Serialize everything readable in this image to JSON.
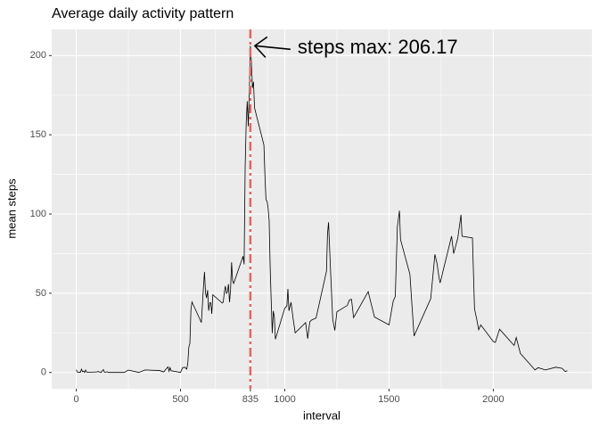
{
  "chart_data": {
    "type": "line",
    "title": "Average daily activity pattern",
    "xlabel": "interval",
    "ylabel": "mean steps",
    "annotation": "steps max: 206.17",
    "vline": 835,
    "vline_color": "#e06666",
    "color": "#000000",
    "grid": true,
    "xlim": [
      -117.75,
      2472.75
    ],
    "xticks": [
      0,
      500,
      835,
      1000,
      1500,
      2000
    ],
    "ylim": [
      -10.3,
      216.5
    ],
    "yticks": [
      0,
      50,
      100,
      150,
      200
    ],
    "x": [
      0,
      5,
      10,
      15,
      20,
      25,
      30,
      35,
      40,
      45,
      50,
      55,
      100,
      105,
      110,
      115,
      120,
      125,
      130,
      135,
      140,
      145,
      150,
      155,
      200,
      230,
      250,
      300,
      330,
      400,
      420,
      430,
      440,
      445,
      450,
      455,
      500,
      510,
      520,
      530,
      535,
      540,
      545,
      550,
      555,
      600,
      610,
      615,
      620,
      625,
      630,
      635,
      640,
      645,
      650,
      655,
      700,
      705,
      710,
      715,
      720,
      725,
      730,
      735,
      740,
      745,
      750,
      755,
      800,
      805,
      810,
      815,
      820,
      825,
      830,
      835,
      840,
      845,
      850,
      855,
      900,
      905,
      910,
      915,
      920,
      925,
      930,
      935,
      940,
      945,
      950,
      955,
      1000,
      1010,
      1015,
      1020,
      1030,
      1040,
      1050,
      1100,
      1110,
      1120,
      1130,
      1150,
      1200,
      1205,
      1210,
      1220,
      1230,
      1240,
      1250,
      1300,
      1310,
      1320,
      1330,
      1400,
      1430,
      1500,
      1520,
      1530,
      1540,
      1550,
      1555,
      1600,
      1620,
      1700,
      1720,
      1730,
      1740,
      1745,
      1800,
      1810,
      1830,
      1845,
      1850,
      1900,
      1910,
      1920,
      1930,
      1940,
      2000,
      2010,
      2030,
      2100,
      2110,
      2130,
      2200,
      2215,
      2235,
      2250,
      2300,
      2330,
      2345,
      2355
    ],
    "values": [
      1.7,
      0.3,
      0.1,
      0.2,
      0.1,
      2.1,
      0.5,
      0.9,
      0,
      1.5,
      0.3,
      0.1,
      0.3,
      0.7,
      0.2,
      0.3,
      0,
      1.1,
      1.8,
      0.2,
      0.2,
      0.4,
      0.3,
      0,
      0,
      0,
      1.5,
      0,
      1.6,
      1.2,
      0.3,
      2.1,
      3.5,
      0.8,
      3.1,
      1.1,
      0,
      3,
      3.3,
      2.1,
      6.1,
      16,
      18.3,
      39.5,
      44.5,
      31.5,
      53.8,
      63.5,
      50,
      47,
      52,
      39,
      44,
      44,
      37,
      49,
      43.8,
      44.4,
      50.5,
      54.5,
      49.9,
      50.9,
      55.7,
      44.3,
      52.3,
      69.5,
      57.8,
      56.2,
      73.4,
      68.2,
      129.4,
      157.5,
      171.2,
      155.4,
      177.3,
      206.17,
      195.9,
      179.6,
      183.4,
      167,
      143.5,
      124,
      109.1,
      108.1,
      103.7,
      95.9,
      66.2,
      45.2,
      24.8,
      38.8,
      35,
      21,
      40.6,
      42,
      52.7,
      38.9,
      44.3,
      34,
      25,
      31.4,
      21.3,
      32,
      33.2,
      34.3,
      63.9,
      87.6,
      94.8,
      63,
      33.5,
      26.5,
      38.3,
      42.3,
      45.8,
      46.2,
      34.6,
      51,
      35,
      30,
      45,
      48,
      92,
      102.1,
      83.9,
      62,
      23,
      46.6,
      74.5,
      68.9,
      59.6,
      56.5,
      86,
      75,
      85,
      99.5,
      86,
      84.9,
      40,
      34,
      27,
      30,
      19.5,
      19,
      27.3,
      17,
      22,
      12,
      1.6,
      3,
      2.2,
      1.6,
      3.3,
      2.6,
      0.6,
      1.1
    ]
  }
}
